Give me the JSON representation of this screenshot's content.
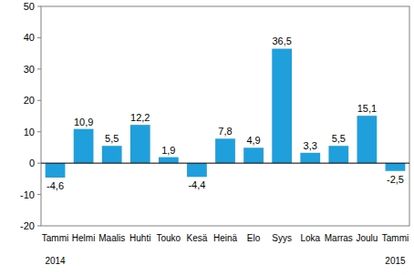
{
  "chart_data": {
    "type": "bar",
    "categories": [
      "Tammi",
      "Helmi",
      "Maalis",
      "Huhti",
      "Touko",
      "Kesä",
      "Heinä",
      "Elo",
      "Syys",
      "Loka",
      "Marras",
      "Joulu",
      "Tammi"
    ],
    "years": [
      "2014",
      null,
      null,
      null,
      null,
      null,
      null,
      null,
      null,
      null,
      null,
      null,
      "2015"
    ],
    "values": [
      -4.6,
      10.9,
      5.5,
      12.2,
      1.9,
      -4.4,
      7.8,
      4.9,
      36.5,
      3.3,
      5.5,
      15.1,
      -2.5
    ],
    "value_labels": [
      "-4,6",
      "10,9",
      "5,5",
      "12,2",
      "1,9",
      "-4,4",
      "7,8",
      "4,9",
      "36,5",
      "3,3",
      "5,5",
      "15,1",
      "-2,5"
    ],
    "color": "#1f9fdb",
    "ylim": [
      -20,
      50
    ],
    "yticks": [
      -20,
      -10,
      0,
      10,
      20,
      30,
      40,
      50
    ],
    "grid": false,
    "data_labels": true
  }
}
